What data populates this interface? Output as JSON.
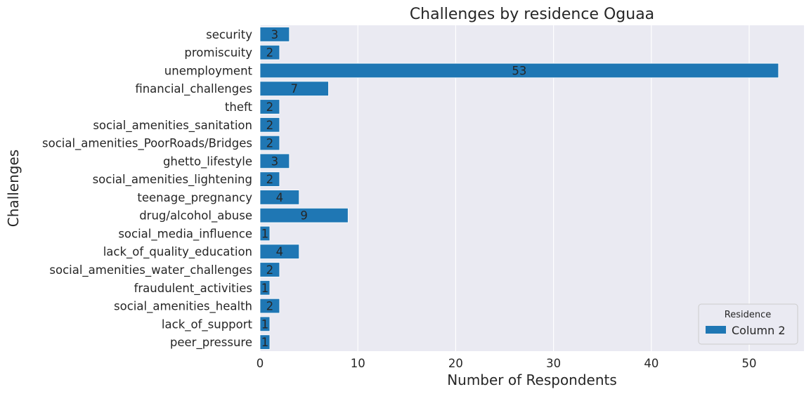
{
  "chart_data": {
    "type": "bar",
    "orientation": "horizontal",
    "title": "Challenges by residence Oguaa",
    "xlabel": "Number of Respondents",
    "ylabel": "Challenges",
    "xlim": [
      0,
      55.6
    ],
    "xticks": [
      0,
      10,
      20,
      30,
      40,
      50
    ],
    "grid": true,
    "legend_title": "Residence",
    "legend_position": "bottom-right",
    "categories": [
      "security",
      "promiscuity",
      "unemployment",
      "financial_challenges",
      "theft",
      "social_amenities_sanitation",
      "social_amenities_PoorRoads/Bridges",
      "ghetto_lifestyle",
      "social_amenities_lightening",
      "teenage_pregnancy",
      "drug/alcohol_abuse",
      "social_media_influence",
      "lack_of_quality_education",
      "social_amenities_water_challenges",
      "fraudulent_activities",
      "social_amenities_health",
      "lack_of_support",
      "peer_pressure"
    ],
    "series": [
      {
        "name": "Column 2",
        "color": "#1f77b4",
        "values": [
          3,
          2,
          53,
          7,
          2,
          2,
          2,
          3,
          2,
          4,
          9,
          1,
          4,
          2,
          1,
          2,
          1,
          1
        ]
      }
    ],
    "plot_background": "#eaeaf2",
    "grid_color": "#ffffff"
  }
}
